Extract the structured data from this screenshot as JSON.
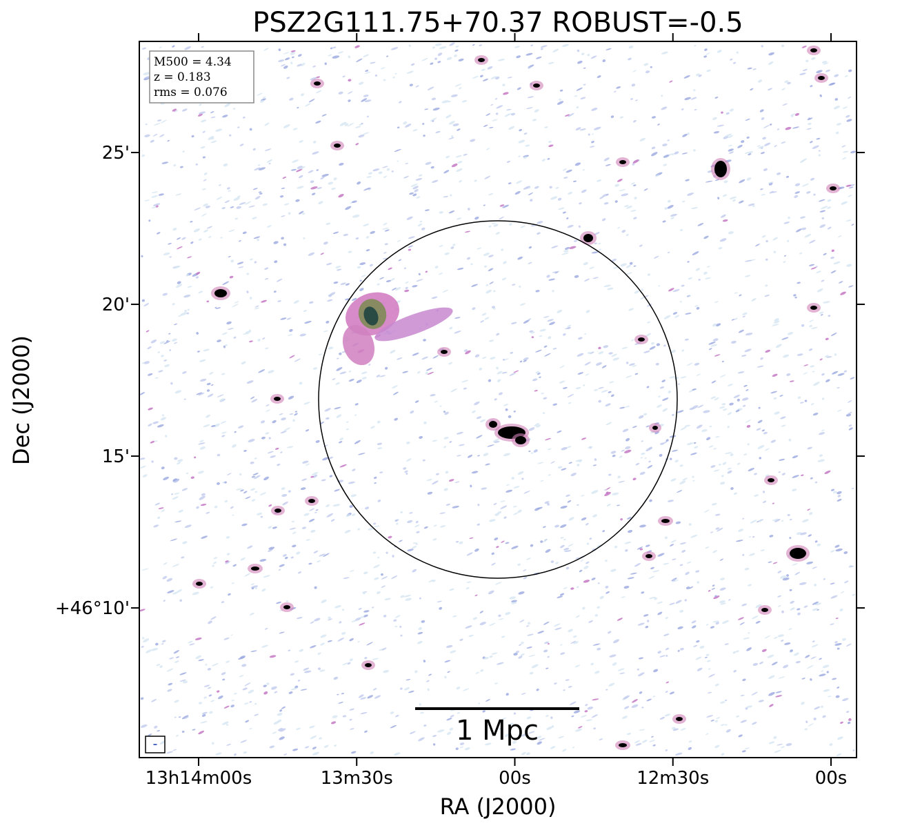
{
  "chart_data": {
    "type": "image",
    "title": "PSZ2G111.75+70.37 ROBUST=-0.5",
    "xlabel": "RA (J2000)",
    "ylabel": "Dec (J2000)",
    "xlim": [
      131.25,
      -4.84
    ],
    "ylim": [
      5.07,
      28.66
    ],
    "xticks": [
      {
        "value": 120,
        "label": "13h14m00s"
      },
      {
        "value": 90,
        "label": "13m30s"
      },
      {
        "value": 60,
        "label": "00s"
      },
      {
        "value": 30,
        "label": "12m30s"
      },
      {
        "value": 0,
        "label": "00s"
      }
    ],
    "yticks": [
      {
        "value": 10,
        "label": "+46°10'"
      },
      {
        "value": 15,
        "label": "15'"
      },
      {
        "value": 20,
        "label": "20'"
      },
      {
        "value": 25,
        "label": "25'"
      }
    ],
    "annotations": [
      "M500 = 4.34",
      "z = 0.183",
      "rms = 0.076"
    ],
    "scalebar_label": "1 Mpc"
  }
}
